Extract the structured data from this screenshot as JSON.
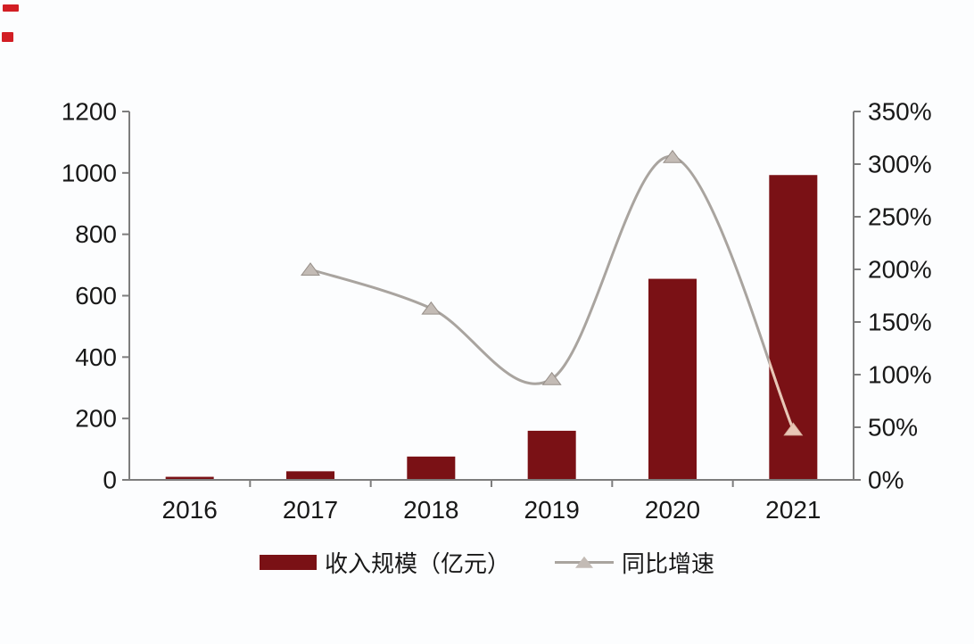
{
  "chart_data": {
    "type": "bar+line",
    "title": "",
    "categories": [
      "2016",
      "2017",
      "2018",
      "2019",
      "2020",
      "2021"
    ],
    "series": [
      {
        "name": "收入规模（亿元）",
        "type": "bar",
        "axis": "left",
        "values": [
          10,
          28,
          76,
          160,
          655,
          993
        ]
      },
      {
        "name": "同比增速",
        "type": "line",
        "axis": "right",
        "unit": "%",
        "values": [
          null,
          200,
          163,
          96,
          307,
          48
        ]
      }
    ],
    "left_axis": {
      "min": 0,
      "max": 1200,
      "step": 200,
      "ticks": [
        "1200",
        "1000",
        "800",
        "600",
        "400",
        "200",
        "0"
      ]
    },
    "right_axis": {
      "min": 0,
      "max": 350,
      "step": 50,
      "ticks": [
        "350%",
        "300%",
        "250%",
        "200%",
        "150%",
        "100%",
        "50%",
        "0%"
      ]
    },
    "legend": {
      "position": "bottom-center",
      "items": [
        {
          "label": "收入规模（亿元）",
          "marker": "bar-swatch"
        },
        {
          "label": "同比增速",
          "marker": "line-triangle"
        }
      ]
    },
    "grid": false,
    "colors": {
      "bar": "#7a1115",
      "line": "#a9a49f",
      "marker_fill": "#c3bbb5",
      "marker_stroke": "#968e88",
      "overlap_pink": "#e9c7b6",
      "axis": "#7d7d7d",
      "text": "#181818"
    }
  },
  "decorations": {
    "corner_marks_color": "#d21e24"
  }
}
